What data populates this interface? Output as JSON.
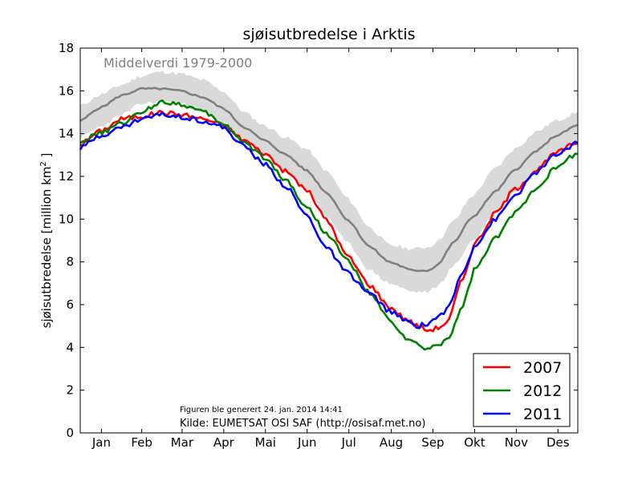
{
  "chart_data": {
    "type": "line",
    "title": "sjøisutbredelse i Arktis",
    "ylabel_main": "sjøisutbredelse [million km",
    "ylabel_sup": "2",
    "ylabel_end": " ]",
    "ylim": [
      0,
      18
    ],
    "yticks": [
      "0",
      "2",
      "4",
      "6",
      "8",
      "10",
      "12",
      "14",
      "16",
      "18"
    ],
    "month_labels": [
      "Jan",
      "Feb",
      "Mar",
      "Apr",
      "Mai",
      "Jun",
      "Jul",
      "Aug",
      "Sep",
      "Okt",
      "Nov",
      "Des"
    ],
    "annotation": "Middelverdi 1979-2000",
    "note_generated": "Figuren ble generert 24. jan. 2014 14:41",
    "note_source": "Kilde: EUMETSAT OSI SAF (http://osisaf.met.no)",
    "mean": {
      "color": "#808080",
      "x": [
        1,
        15,
        32,
        46,
        60,
        74,
        91,
        105,
        121,
        135,
        152,
        166,
        182,
        196,
        213,
        227,
        244,
        256,
        263,
        274,
        288,
        305,
        319,
        335,
        349,
        365
      ],
      "values": [
        14.6,
        15.2,
        15.8,
        16.1,
        16.1,
        16.0,
        15.7,
        15.2,
        14.3,
        13.7,
        13.0,
        12.3,
        11.2,
        10.0,
        8.7,
        8.0,
        7.6,
        7.6,
        7.9,
        8.9,
        10.1,
        11.3,
        12.3,
        13.2,
        13.9,
        14.4
      ]
    },
    "band": {
      "color": "#d9d9d9",
      "x": [
        1,
        15,
        32,
        46,
        60,
        74,
        91,
        105,
        121,
        135,
        152,
        166,
        182,
        196,
        213,
        227,
        244,
        256,
        263,
        274,
        288,
        305,
        319,
        335,
        349,
        365
      ],
      "upper": [
        15.3,
        15.8,
        16.3,
        16.7,
        16.9,
        16.8,
        16.5,
        16.0,
        15.0,
        14.4,
        13.8,
        13.3,
        12.2,
        11.0,
        9.6,
        8.8,
        8.6,
        8.7,
        9.0,
        9.9,
        11.1,
        12.4,
        13.3,
        14.1,
        14.6,
        15.0
      ],
      "lower": [
        13.8,
        14.3,
        14.9,
        15.4,
        15.5,
        15.4,
        15.0,
        14.5,
        13.7,
        13.0,
        12.2,
        11.4,
        10.1,
        8.9,
        7.6,
        7.0,
        6.6,
        6.6,
        6.9,
        7.8,
        9.0,
        10.3,
        11.3,
        12.3,
        13.1,
        13.6
      ]
    },
    "series": [
      {
        "name": "2007",
        "color": "#ff0000",
        "x": [
          1,
          15,
          32,
          46,
          60,
          74,
          91,
          105,
          121,
          135,
          152,
          166,
          182,
          196,
          213,
          227,
          240,
          248,
          255,
          262,
          270,
          280,
          290,
          305,
          319,
          335,
          349,
          365
        ],
        "values": [
          13.5,
          14.1,
          14.7,
          14.8,
          15.0,
          14.9,
          14.7,
          14.4,
          13.7,
          13.1,
          12.2,
          11.4,
          9.9,
          8.3,
          6.9,
          5.9,
          5.3,
          5.0,
          4.8,
          4.9,
          5.2,
          7.1,
          8.9,
          10.3,
          11.4,
          12.3,
          13.1,
          13.6
        ]
      },
      {
        "name": "2012",
        "color": "#008000",
        "x": [
          1,
          15,
          32,
          46,
          60,
          74,
          91,
          105,
          121,
          135,
          152,
          166,
          182,
          196,
          213,
          227,
          240,
          248,
          255,
          262,
          270,
          280,
          290,
          305,
          319,
          335,
          349,
          365
        ],
        "values": [
          13.6,
          14.0,
          14.5,
          15.0,
          15.5,
          15.4,
          15.0,
          14.5,
          13.6,
          12.9,
          11.8,
          10.6,
          9.3,
          8.1,
          6.5,
          5.3,
          4.4,
          4.1,
          3.9,
          4.1,
          4.4,
          5.8,
          7.7,
          9.1,
          10.3,
          11.5,
          12.4,
          13.1
        ]
      },
      {
        "name": "2011",
        "color": "#0000ff",
        "x": [
          1,
          15,
          32,
          46,
          60,
          74,
          91,
          105,
          121,
          135,
          152,
          166,
          182,
          196,
          213,
          227,
          240,
          248,
          255,
          262,
          270,
          280,
          290,
          305,
          319,
          335,
          349,
          365
        ],
        "values": [
          13.3,
          13.9,
          14.3,
          14.7,
          14.9,
          14.8,
          14.6,
          14.3,
          13.4,
          12.6,
          11.5,
          10.2,
          8.6,
          7.5,
          6.5,
          5.7,
          5.2,
          5.0,
          5.1,
          5.4,
          5.8,
          7.4,
          8.8,
          10.0,
          11.1,
          12.2,
          13.0,
          13.6
        ]
      }
    ],
    "legend_position": "lower-right",
    "grid": false
  }
}
